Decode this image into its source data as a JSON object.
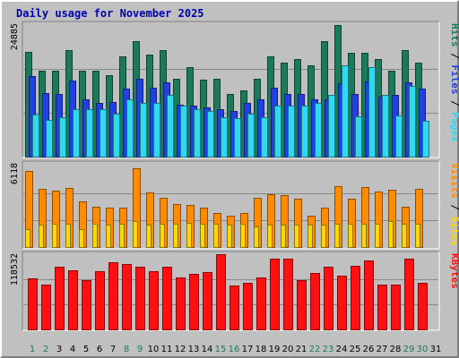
{
  "chart_data": {
    "type": "bar",
    "title": "Daily usage for November 2025",
    "days": [
      "1",
      "2",
      "3",
      "4",
      "5",
      "6",
      "7",
      "8",
      "9",
      "10",
      "11",
      "12",
      "13",
      "14",
      "15",
      "16",
      "17",
      "18",
      "19",
      "20",
      "21",
      "22",
      "23",
      "24",
      "25",
      "26",
      "27",
      "28",
      "29",
      "30",
      "31"
    ],
    "weekend_days": [
      "1",
      "2",
      "8",
      "9",
      "15",
      "16",
      "22",
      "23",
      "29",
      "30"
    ],
    "panels": [
      {
        "id": "hits-files-pages",
        "ymax_label": "24885",
        "ymax": 24885,
        "legend": [
          "Pages",
          "Files",
          "Hits"
        ],
        "series": [
          {
            "name": "Hits",
            "color": "#1c7a5a",
            "values": [
              19800,
              16300,
              16300,
              20100,
              16300,
              16300,
              15400,
              18900,
              21800,
              19300,
              20100,
              14800,
              17000,
              14600,
              14700,
              11900,
              12500,
              14700,
              18900,
              17800,
              18400,
              17200,
              21800,
              24885,
              19700,
              19700,
              18400,
              16300,
              20100,
              17800,
              null
            ]
          },
          {
            "name": "Files",
            "color": "#2040e0",
            "values": [
              15300,
              12000,
              11900,
              14400,
              10800,
              10100,
              10400,
              12900,
              14800,
              13100,
              14000,
              9800,
              9600,
              9300,
              8900,
              8600,
              10100,
              10800,
              13100,
              11900,
              11900,
              10800,
              10800,
              13800,
              11900,
              14200,
              11400,
              11600,
              14000,
              12900,
              null
            ]
          },
          {
            "name": "Pages",
            "color": "#30d8f0",
            "values": [
              7900,
              6900,
              7400,
              8900,
              8900,
              8900,
              8100,
              10800,
              10100,
              10100,
              11700,
              9600,
              9000,
              8600,
              7500,
              7200,
              8100,
              7400,
              9600,
              9600,
              9600,
              10100,
              11700,
              17300,
              7700,
              17000,
              11600,
              7800,
              13400,
              6700,
              null
            ]
          }
        ]
      },
      {
        "id": "visits-sites",
        "ymax_label": "6118",
        "ymax": 6118,
        "legend": [
          "Sites",
          "Visits"
        ],
        "series": [
          {
            "name": "Visits",
            "color": "#ff8c00",
            "values": [
              5750,
              4440,
              4250,
              4470,
              3470,
              3030,
              2980,
              2980,
              5960,
              4120,
              3740,
              3280,
              3190,
              3000,
              2560,
              2370,
              2560,
              3730,
              4020,
              3940,
              3650,
              2380,
              2980,
              4600,
              3660,
              4530,
              4230,
              4350,
              3060,
              4430,
              null
            ]
          },
          {
            "name": "Sites",
            "color": "#ffd800",
            "values": [
              1360,
              1710,
              1800,
              1800,
              1360,
              1800,
              1710,
              1800,
              1950,
              1710,
              1800,
              1800,
              1850,
              1800,
              1750,
              1710,
              1800,
              1560,
              1710,
              1710,
              1710,
              1710,
              1710,
              1800,
              1800,
              1800,
              1800,
              1950,
              1800,
              1800,
              null
            ]
          }
        ]
      },
      {
        "id": "kbytes",
        "ymax_label": "118532",
        "ymax": 118532,
        "legend": [
          "KBytes"
        ],
        "series": [
          {
            "name": "KBytes",
            "color": "#ff1010",
            "values": [
              80400,
              71200,
              98400,
              93800,
              77300,
              92200,
              106000,
              103000,
              98400,
              92200,
              98400,
              81600,
              87600,
              90700,
              118532,
              69700,
              73900,
              81600,
              111000,
              112000,
              77300,
              88200,
              98400,
              85000,
              100000,
              108000,
              71200,
              71200,
              111000,
              73900,
              null
            ]
          }
        ]
      }
    ]
  }
}
